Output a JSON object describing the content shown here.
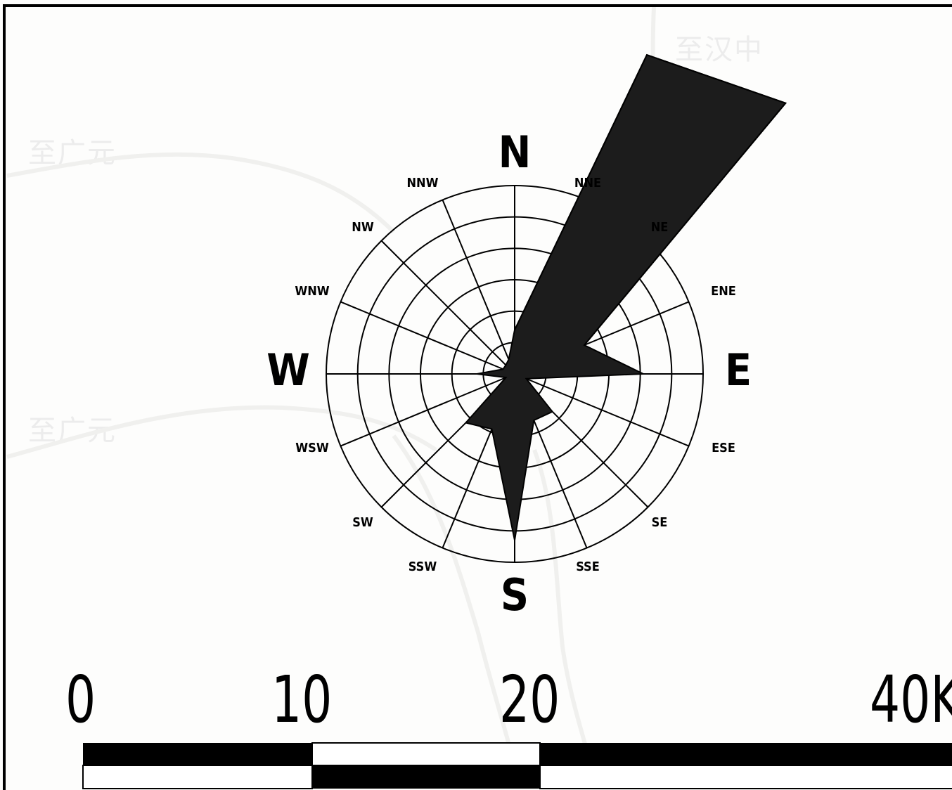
{
  "background_labels": [
    "至汉中",
    "至广元",
    "至广元"
  ],
  "wind_rose": {
    "cardinals": [
      "N",
      "E",
      "S",
      "W"
    ],
    "intercardinals": [
      "NNE",
      "NE",
      "ENE",
      "ESE",
      "SE",
      "SSE",
      "SSW",
      "SW",
      "WSW",
      "WNW",
      "NW",
      "NNW"
    ],
    "frequencies": {
      "N": 1.4,
      "NNE": 11.0,
      "NE": 12.2,
      "ENE": 2.4,
      "E": 4.1,
      "ESE": 0.4,
      "SE": 1.7,
      "SSE": 1.6,
      "S": 5.3,
      "SSW": 1.9,
      "SW": 2.2,
      "WSW": 0.3,
      "W": 1.2,
      "WNW": 0.4,
      "NW": 0.4,
      "NNW": 0.5
    },
    "ring_count": 6,
    "spoke_count": 16
  },
  "scale_bar": {
    "labels": [
      "0",
      "10",
      "20",
      "40K"
    ]
  },
  "colors": {
    "ink": "#000000",
    "petal": "#1c1c1c",
    "background": "#fdfdfc",
    "faint": "#ececec"
  }
}
